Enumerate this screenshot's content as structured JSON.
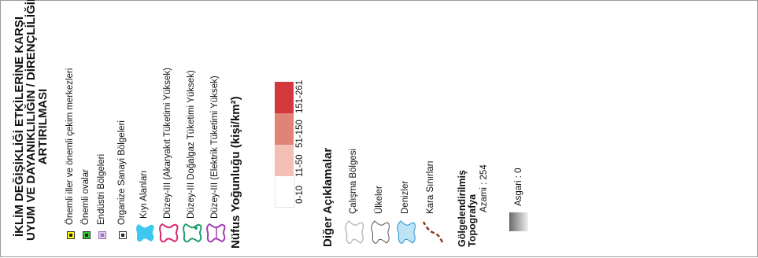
{
  "title_lines": [
    "İKLİM DEĞİŞİKLİĞİ ETKİLERİNE KARŞI",
    "UYUM VE DAYANIKLILIĞIN / DİRENÇLİLİĞİN",
    "ARTIRILMASI"
  ],
  "legend_items": [
    {
      "label": "Önemli iller ve önemli çekim merkezleri",
      "icon": "yellow-square-symbol",
      "color": "#ffff00"
    },
    {
      "label": "Önemli ovalar",
      "icon": "green-square-symbol",
      "color": "#33cc33"
    },
    {
      "label": "Endüstri Bölgeleri",
      "icon": "lavender-square-symbol",
      "color": "#e0c8f0"
    },
    {
      "label": "Organize Sanayi Bölgeleri",
      "icon": "white-square-symbol",
      "color": "#ffffff"
    },
    {
      "label": "Kıyı Alanları",
      "icon": "cyan-region-symbol",
      "color": "#3ec8f0"
    },
    {
      "label": "Düzey-III (Akaryakıt Tüketimi Yüksek)",
      "icon": "magenta-outline-region",
      "color": "#d6286f"
    },
    {
      "label": "Düzey-III Doğalgaz Tüketimi Yüksek)",
      "icon": "green-outline-region",
      "color": "#1f9e6e"
    },
    {
      "label": "Düzey-III (Elektrik Tüketimi Yüksek)",
      "icon": "purple-outline-region",
      "color": "#a23bb8"
    }
  ],
  "density": {
    "title": "Nüfus Yoğunluğu (kişi/km²)",
    "classes": [
      {
        "label": "0-10",
        "color": "#ffffff"
      },
      {
        "label": "11-50",
        "color": "#f2c0b4"
      },
      {
        "label": "51-150",
        "color": "#e08477"
      },
      {
        "label": "151-261",
        "color": "#d2383c"
      }
    ]
  },
  "other": {
    "title": "Diğer Açıklamalar",
    "items": [
      {
        "label": "Çalışma Bölgesi",
        "icon": "outline-region-symbol"
      },
      {
        "label": "Ülkeler",
        "icon": "country-outline-symbol"
      },
      {
        "label": "Denizler",
        "icon": "sea-region-symbol",
        "color": "#bde3f5"
      },
      {
        "label": "Kara Sınırları",
        "icon": "land-border-symbol",
        "color": "#8b3a1c"
      }
    ]
  },
  "topo": {
    "title_lines": [
      "Gölgelendirilmiş",
      "Topografya"
    ],
    "max_label": "Azami : 254",
    "min_label": "Asgari : 0"
  }
}
